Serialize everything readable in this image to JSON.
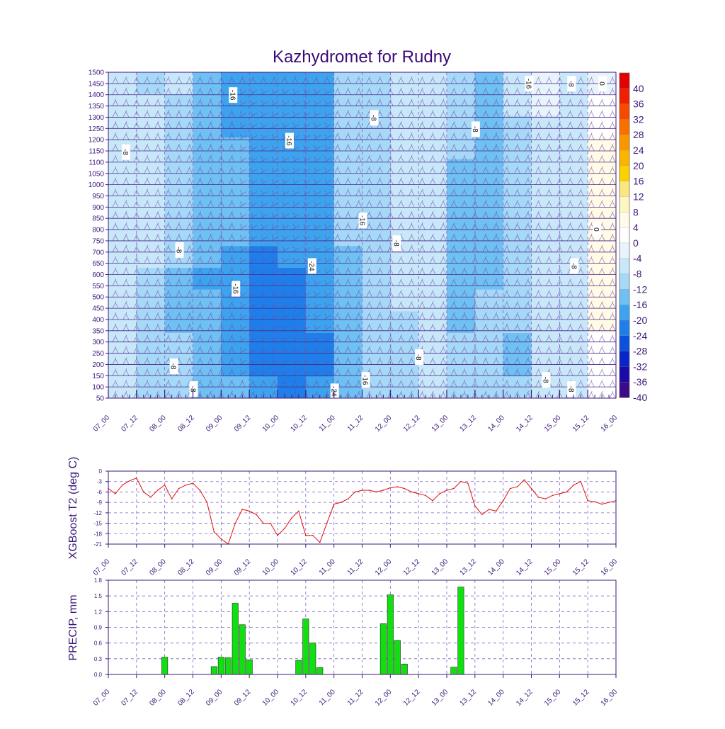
{
  "colors": {
    "axis": "#3b1a7a",
    "title": "#3b0a78",
    "temp_line": "#e01010",
    "precip_bar": "#10e010",
    "grid": "#8060c0"
  },
  "chart_data": [
    {
      "type": "heatmap",
      "title": "Kazhydromet for Rudny",
      "x_tick_labels": [
        "07_00",
        "07_12",
        "08_00",
        "08_12",
        "09_00",
        "09_12",
        "10_00",
        "10_12",
        "11_00",
        "11_12",
        "12_00",
        "12_12",
        "13_00",
        "13_12",
        "14_00",
        "14_12",
        "15_00",
        "15_12",
        "16_00"
      ],
      "y_tick_labels": [
        "1500",
        "1450",
        "1400",
        "1350",
        "1300",
        "1250",
        "1200",
        "1150",
        "1100",
        "1050",
        "1000",
        "950",
        "900",
        "850",
        "800",
        "750",
        "700",
        "650",
        "600",
        "550",
        "500",
        "450",
        "400",
        "350",
        "300",
        "250",
        "200",
        "150",
        "100",
        "50"
      ],
      "ylim": [
        50,
        1500
      ],
      "colorbar_labels": [
        "40",
        "36",
        "32",
        "28",
        "24",
        "20",
        "16",
        "12",
        "8",
        "4",
        "0",
        "-4",
        "-8",
        "-12",
        "-16",
        "-20",
        "-24",
        "-28",
        "-32",
        "-36",
        "-40"
      ],
      "colorbar_colors": [
        "#e30000",
        "#ee2000",
        "#f54a00",
        "#fa7000",
        "#fc9600",
        "#fdb400",
        "#fdd000",
        "#fde680",
        "#fef6c0",
        "#fffbe6",
        "#ffffff",
        "#e8f4fc",
        "#c8e8fa",
        "#a6d9f7",
        "#6fc0f3",
        "#3ea3ee",
        "#1f7fea",
        "#0a52de",
        "#0a24c8",
        "#1a0aa8",
        "#3a0a88"
      ],
      "temperature_field": [
        [
          -10,
          -10,
          -10,
          -10,
          -10,
          -10,
          -10,
          -10,
          -10,
          -10,
          -10,
          -10,
          -10,
          -10,
          -10
        ],
        [
          -12,
          -10,
          -10,
          -10,
          -10,
          -10,
          -10,
          -10,
          -10,
          -12,
          -12,
          -12,
          -12,
          -12,
          -12
        ],
        [
          -10,
          -12,
          -12,
          -14,
          -14,
          -14,
          -14,
          -14,
          -14,
          -16,
          -16,
          -16,
          -14,
          -14,
          -12
        ],
        [
          -18,
          -18,
          -16,
          -16,
          -16,
          -16,
          -18,
          -18,
          -18,
          -20,
          -18,
          -18,
          -18,
          -18,
          -18
        ],
        [
          -22,
          -22,
          -20,
          -18,
          -18,
          -18,
          -18,
          -18,
          -20,
          -22,
          -22,
          -20,
          -20,
          -20,
          -18
        ],
        [
          -22,
          -22,
          -22,
          -22,
          -22,
          -22,
          -22,
          -22,
          -24,
          -24,
          -26,
          -26,
          -26,
          -24,
          -22
        ],
        [
          -20,
          -20,
          -20,
          -20,
          -20,
          -20,
          -20,
          -22,
          -22,
          -24,
          -25,
          -26,
          -26,
          -26,
          -24
        ],
        [
          -20,
          -20,
          -20,
          -20,
          -20,
          -20,
          -20,
          -20,
          -20,
          -20,
          -22,
          -22,
          -24,
          -24,
          -22
        ],
        [
          -14,
          -14,
          -14,
          -14,
          -14,
          -14,
          -14,
          -14,
          -16,
          -16,
          -16,
          -18,
          -18,
          -18,
          -16
        ],
        [
          -12,
          -12,
          -12,
          -12,
          -12,
          -12,
          -12,
          -12,
          -12,
          -14,
          -14,
          -14,
          -14,
          -14,
          -14
        ],
        [
          -10,
          -10,
          -10,
          -10,
          -10,
          -10,
          -10,
          -10,
          -10,
          -10,
          -10,
          -12,
          -12,
          -12,
          -12
        ],
        [
          -8,
          -8,
          -8,
          -8,
          -8,
          -8,
          -8,
          -8,
          -8,
          -8,
          -8,
          -8,
          -8,
          -8,
          -8
        ],
        [
          -14,
          -14,
          -14,
          -14,
          -16,
          -16,
          -16,
          -16,
          -16,
          -16,
          -16,
          -16,
          -14,
          -14,
          -14
        ],
        [
          -18,
          -18,
          -18,
          -18,
          -18,
          -18,
          -18,
          -18,
          -16,
          -16,
          -14,
          -14,
          -14,
          -14,
          -14
        ],
        [
          -10,
          -10,
          -12,
          -12,
          -12,
          -12,
          -12,
          -12,
          -12,
          -12,
          -12,
          -14,
          -16,
          -16,
          -14
        ],
        [
          -6,
          -6,
          -8,
          -8,
          -8,
          -8,
          -8,
          -8,
          -8,
          -8,
          -8,
          -8,
          -8,
          -10,
          -10
        ],
        [
          -8,
          -8,
          -8,
          -8,
          -8,
          -8,
          -8,
          -8,
          -8,
          -8,
          -8,
          -8,
          -8,
          -8,
          -8
        ],
        [
          -4,
          -2,
          0,
          2,
          2,
          2,
          2,
          2,
          2,
          2,
          2,
          2,
          0,
          -2,
          -2
        ]
      ],
      "contour_labels": [
        {
          "text": "-8",
          "col": 0.6,
          "row": 3.5
        },
        {
          "text": "-8",
          "col": 2.5,
          "row": 7.8
        },
        {
          "text": "-8",
          "col": 2.3,
          "row": 12.9
        },
        {
          "text": "-8",
          "col": 3.0,
          "row": 13.9
        },
        {
          "text": "-16",
          "col": 4.4,
          "row": 1.0
        },
        {
          "text": "-16",
          "col": 4.5,
          "row": 9.5
        },
        {
          "text": "-16",
          "col": 6.4,
          "row": 3.0
        },
        {
          "text": "-24",
          "col": 7.2,
          "row": 8.5
        },
        {
          "text": "-24",
          "col": 8.0,
          "row": 14.0
        },
        {
          "text": "-16",
          "col": 9.0,
          "row": 6.5
        },
        {
          "text": "-16",
          "col": 9.1,
          "row": 13.5
        },
        {
          "text": "-8",
          "col": 9.4,
          "row": 2.0
        },
        {
          "text": "-8",
          "col": 10.2,
          "row": 7.5
        },
        {
          "text": "-8",
          "col": 11.0,
          "row": 12.5
        },
        {
          "text": "-8",
          "col": 13.0,
          "row": 2.5
        },
        {
          "text": "-16",
          "col": 14.9,
          "row": 0.5
        },
        {
          "text": "-8",
          "col": 15.5,
          "row": 13.5
        },
        {
          "text": "-8",
          "col": 16.4,
          "row": 0.5
        },
        {
          "text": "-8",
          "col": 16.5,
          "row": 8.5
        },
        {
          "text": "-8",
          "col": 16.4,
          "row": 13.9
        },
        {
          "text": "0",
          "col": 17.5,
          "row": 0.5
        },
        {
          "text": "0",
          "col": 17.3,
          "row": 6.9
        }
      ]
    },
    {
      "type": "line",
      "ylabel": "XGBoost T2 (deg C)",
      "ylim": [
        -21,
        0
      ],
      "y_tick_labels": [
        "0",
        "-3",
        "-6",
        "-9",
        "-12",
        "-15",
        "-18",
        "-21"
      ],
      "x_tick_labels": [
        "07_00",
        "07_12",
        "08_00",
        "08_12",
        "09_00",
        "09_12",
        "10_00",
        "10_12",
        "11_00",
        "11_12",
        "12_00",
        "12_12",
        "13_00",
        "13_12",
        "14_00",
        "14_12",
        "15_00",
        "15_12",
        "16_00"
      ],
      "xlim": [
        0,
        216
      ],
      "x": [
        0,
        3,
        6,
        9,
        12,
        15,
        18,
        21,
        24,
        27,
        30,
        33,
        36,
        39,
        42,
        45,
        48,
        51,
        54,
        57,
        60,
        63,
        66,
        69,
        72,
        75,
        78,
        81,
        84,
        87,
        90,
        93,
        96,
        99,
        102,
        105,
        108,
        111,
        114,
        117,
        120,
        123,
        126,
        129,
        132,
        135,
        138,
        141,
        144,
        147,
        150,
        153,
        156,
        159,
        162,
        165,
        168,
        171,
        174,
        177,
        180,
        183,
        186,
        189,
        192,
        195,
        198,
        201,
        204,
        207,
        210,
        213,
        216
      ],
      "values": [
        -5,
        -6.5,
        -4,
        -2.8,
        -2,
        -6,
        -7.5,
        -5.5,
        -4,
        -8,
        -5,
        -4,
        -3.5,
        -5.5,
        -9,
        -17.5,
        -19.5,
        -21,
        -15,
        -11,
        -11.5,
        -12.5,
        -15,
        -15,
        -18.5,
        -16.5,
        -13.5,
        -11.5,
        -18.5,
        -18.5,
        -20.5,
        -15,
        -9.5,
        -9,
        -8,
        -6,
        -5.5,
        -5.5,
        -6,
        -5.5,
        -4.8,
        -4.5,
        -5,
        -6,
        -6.5,
        -7,
        -8.5,
        -6.5,
        -5.5,
        -5,
        -3,
        -3.5,
        -10,
        -12.5,
        -11,
        -11.5,
        -8.5,
        -5,
        -4.5,
        -2.5,
        -5,
        -7.5,
        -8,
        -7,
        -6.5,
        -6,
        -4,
        -3,
        -8.5,
        -8.8,
        -9.5,
        -9,
        -8.5
      ]
    },
    {
      "type": "bar",
      "ylabel": "PRECIP, mm",
      "ylim": [
        0,
        1.8
      ],
      "y_tick_labels": [
        "1.8",
        "1.5",
        "1.2",
        "0.9",
        "0.6",
        "0.3",
        "0.0"
      ],
      "x_tick_labels": [
        "07_00",
        "07_12",
        "08_00",
        "08_12",
        "09_00",
        "09_12",
        "10_00",
        "10_12",
        "11_00",
        "11_12",
        "12_00",
        "12_12",
        "13_00",
        "13_12",
        "14_00",
        "14_12",
        "15_00",
        "15_12",
        "16_00"
      ],
      "xlim": [
        0,
        216
      ],
      "bars": [
        {
          "x": 24,
          "value": 0.33
        },
        {
          "x": 45,
          "value": 0.15
        },
        {
          "x": 48,
          "value": 0.33
        },
        {
          "x": 51,
          "value": 0.32
        },
        {
          "x": 54,
          "value": 1.36
        },
        {
          "x": 57,
          "value": 0.95
        },
        {
          "x": 60,
          "value": 0.28
        },
        {
          "x": 81,
          "value": 0.27
        },
        {
          "x": 84,
          "value": 1.06
        },
        {
          "x": 87,
          "value": 0.6
        },
        {
          "x": 90,
          "value": 0.13
        },
        {
          "x": 117,
          "value": 0.97
        },
        {
          "x": 120,
          "value": 1.52
        },
        {
          "x": 123,
          "value": 0.65
        },
        {
          "x": 126,
          "value": 0.2
        },
        {
          "x": 147,
          "value": 0.14
        },
        {
          "x": 150,
          "value": 1.67
        }
      ]
    }
  ]
}
